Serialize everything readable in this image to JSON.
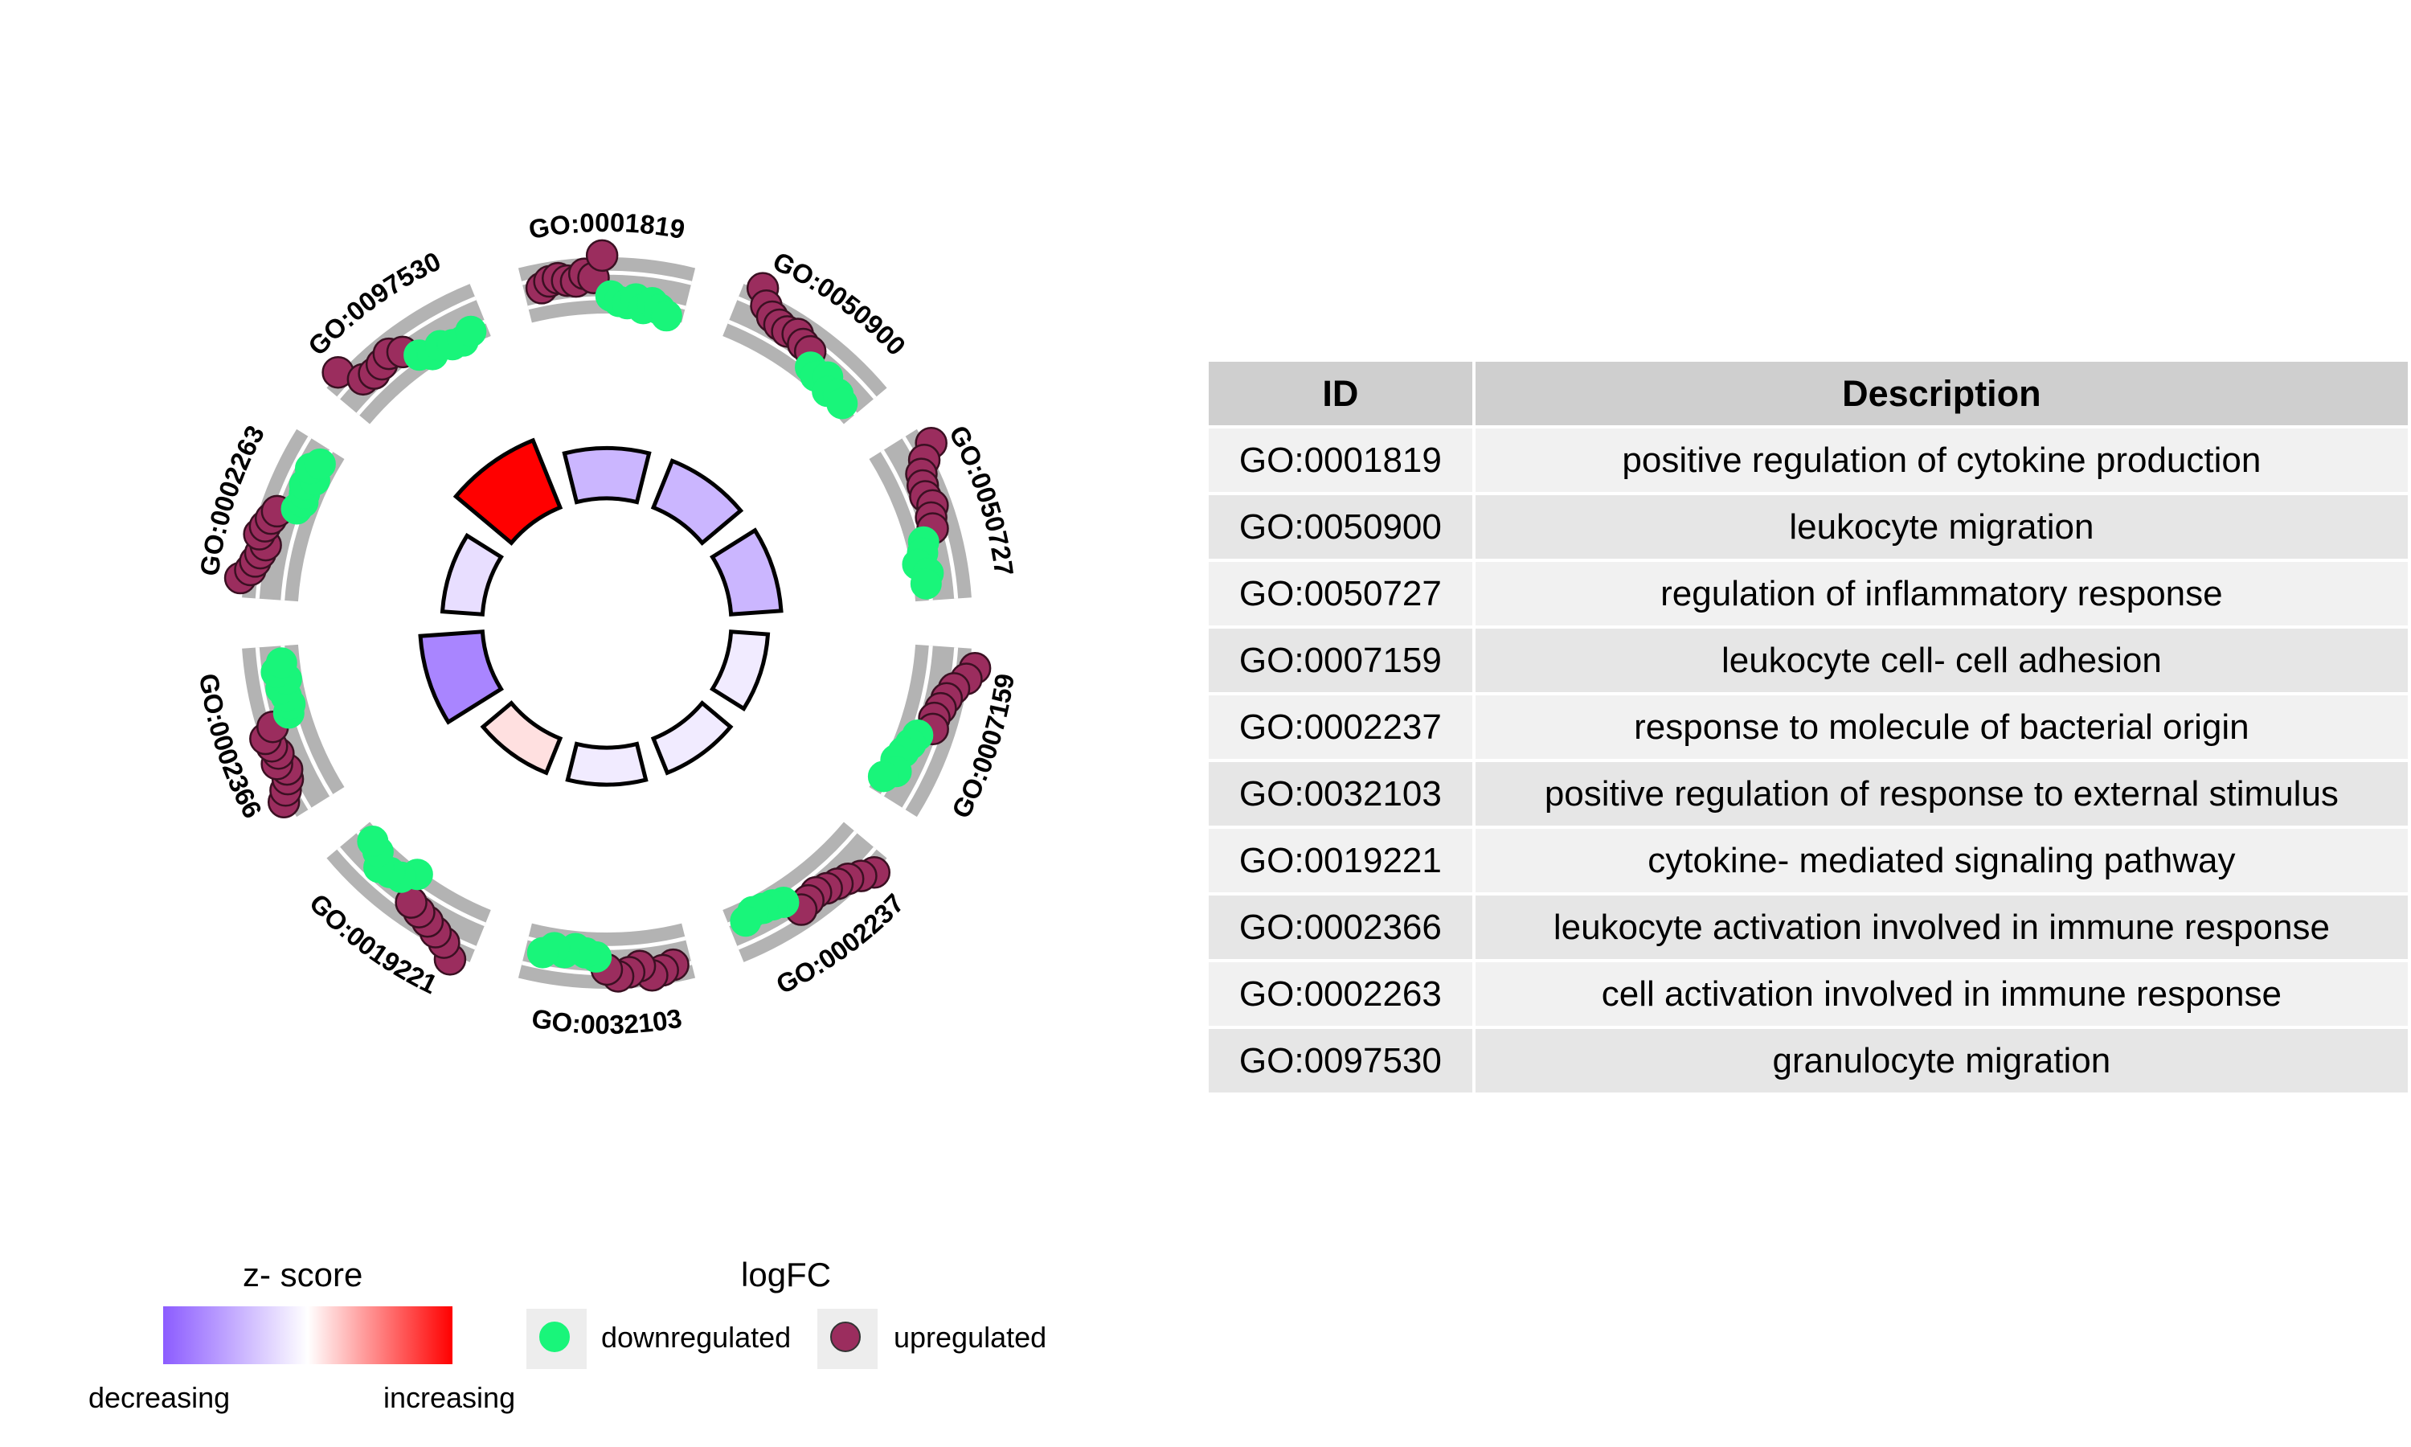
{
  "chart_data": {
    "type": "goplot-circle",
    "terms": [
      {
        "id": "GO:0001819",
        "description": "positive regulation of cytokine production",
        "zscore_level": -0.45,
        "points": [
          {
            "fc": 0.1,
            "reg": "up"
          },
          {
            "fc": 0.25,
            "reg": "up"
          },
          {
            "fc": 0.3,
            "reg": "up"
          },
          {
            "fc": 0.2,
            "reg": "up"
          },
          {
            "fc": 0.15,
            "reg": "up"
          },
          {
            "fc": 0.35,
            "reg": "up"
          },
          {
            "fc": 0.22,
            "reg": "up"
          },
          {
            "fc": 0.85,
            "reg": "up"
          },
          {
            "fc": -0.3,
            "reg": "down"
          },
          {
            "fc": -0.45,
            "reg": "down"
          },
          {
            "fc": -0.5,
            "reg": "down"
          },
          {
            "fc": -0.35,
            "reg": "down"
          },
          {
            "fc": -0.6,
            "reg": "down"
          },
          {
            "fc": -0.4,
            "reg": "down"
          },
          {
            "fc": -0.55,
            "reg": "down"
          },
          {
            "fc": -0.7,
            "reg": "down"
          }
        ]
      },
      {
        "id": "GO:0050900",
        "description": "leukocyte migration",
        "zscore_level": -0.45,
        "points": [
          {
            "fc": 0.9,
            "reg": "up"
          },
          {
            "fc": 0.5,
            "reg": "up"
          },
          {
            "fc": 0.3,
            "reg": "up"
          },
          {
            "fc": 0.2,
            "reg": "up"
          },
          {
            "fc": 0.15,
            "reg": "up"
          },
          {
            "fc": 0.25,
            "reg": "up"
          },
          {
            "fc": 0.1,
            "reg": "up"
          },
          {
            "fc": 0.05,
            "reg": "up"
          },
          {
            "fc": -0.3,
            "reg": "down"
          },
          {
            "fc": -0.4,
            "reg": "down"
          },
          {
            "fc": -0.2,
            "reg": "down"
          },
          {
            "fc": -0.5,
            "reg": "down"
          },
          {
            "fc": -0.35,
            "reg": "down"
          },
          {
            "fc": -0.45,
            "reg": "down"
          }
        ]
      },
      {
        "id": "GO:0050727",
        "description": "regulation of inflammatory response",
        "zscore_level": -0.45,
        "points": [
          {
            "fc": 0.95,
            "reg": "up"
          },
          {
            "fc": 0.55,
            "reg": "up"
          },
          {
            "fc": 0.3,
            "reg": "up"
          },
          {
            "fc": 0.2,
            "reg": "up"
          },
          {
            "fc": 0.15,
            "reg": "up"
          },
          {
            "fc": 0.25,
            "reg": "up"
          },
          {
            "fc": 0.1,
            "reg": "up"
          },
          {
            "fc": 0.05,
            "reg": "up"
          },
          {
            "fc": -0.3,
            "reg": "down"
          },
          {
            "fc": -0.4,
            "reg": "down"
          },
          {
            "fc": -0.6,
            "reg": "down"
          },
          {
            "fc": -0.35,
            "reg": "down"
          },
          {
            "fc": -0.45,
            "reg": "down"
          }
        ]
      },
      {
        "id": "GO:0007159",
        "description": "leukocyte cell- cell adhesion",
        "zscore_level": -0.12,
        "points": [
          {
            "fc": 0.95,
            "reg": "up"
          },
          {
            "fc": 0.75,
            "reg": "up"
          },
          {
            "fc": 0.45,
            "reg": "up"
          },
          {
            "fc": 0.3,
            "reg": "up"
          },
          {
            "fc": 0.2,
            "reg": "up"
          },
          {
            "fc": 0.1,
            "reg": "up"
          },
          {
            "fc": 0.15,
            "reg": "up"
          },
          {
            "fc": -0.2,
            "reg": "down"
          },
          {
            "fc": -0.3,
            "reg": "down"
          },
          {
            "fc": -0.4,
            "reg": "down"
          },
          {
            "fc": -0.5,
            "reg": "down"
          },
          {
            "fc": -0.35,
            "reg": "down"
          },
          {
            "fc": -0.6,
            "reg": "down"
          }
        ]
      },
      {
        "id": "GO:0002237",
        "description": "response to molecule of bacterial origin",
        "zscore_level": -0.12,
        "points": [
          {
            "fc": 0.8,
            "reg": "up"
          },
          {
            "fc": 0.6,
            "reg": "up"
          },
          {
            "fc": 0.4,
            "reg": "up"
          },
          {
            "fc": 0.3,
            "reg": "up"
          },
          {
            "fc": 0.2,
            "reg": "up"
          },
          {
            "fc": 0.1,
            "reg": "up"
          },
          {
            "fc": 0.15,
            "reg": "up"
          },
          {
            "fc": 0.25,
            "reg": "up"
          },
          {
            "fc": -0.2,
            "reg": "down"
          },
          {
            "fc": -0.3,
            "reg": "down"
          },
          {
            "fc": -0.35,
            "reg": "down"
          },
          {
            "fc": -0.4,
            "reg": "down"
          },
          {
            "fc": -0.25,
            "reg": "down"
          }
        ]
      },
      {
        "id": "GO:0032103",
        "description": "positive regulation of response to external stimulus",
        "zscore_level": -0.12,
        "points": [
          {
            "fc": 0.3,
            "reg": "up"
          },
          {
            "fc": 0.4,
            "reg": "up"
          },
          {
            "fc": 0.5,
            "reg": "up"
          },
          {
            "fc": 0.2,
            "reg": "up"
          },
          {
            "fc": 0.35,
            "reg": "up"
          },
          {
            "fc": 0.45,
            "reg": "up"
          },
          {
            "fc": 0.25,
            "reg": "up"
          },
          {
            "fc": -0.1,
            "reg": "down"
          },
          {
            "fc": -0.2,
            "reg": "down"
          },
          {
            "fc": -0.3,
            "reg": "down"
          },
          {
            "fc": -0.15,
            "reg": "down"
          },
          {
            "fc": -0.25,
            "reg": "down"
          },
          {
            "fc": -0.05,
            "reg": "down"
          }
        ]
      },
      {
        "id": "GO:0019221",
        "description": "cytokine- mediated signaling pathway",
        "zscore_level": 0.12,
        "points": [
          {
            "fc": 0.95,
            "reg": "up"
          },
          {
            "fc": 0.6,
            "reg": "up"
          },
          {
            "fc": 0.45,
            "reg": "up"
          },
          {
            "fc": 0.3,
            "reg": "up"
          },
          {
            "fc": 0.2,
            "reg": "up"
          },
          {
            "fc": 0.1,
            "reg": "up"
          },
          {
            "fc": -0.65,
            "reg": "down"
          },
          {
            "fc": -0.3,
            "reg": "down"
          },
          {
            "fc": -0.2,
            "reg": "down"
          },
          {
            "fc": -0.1,
            "reg": "down"
          },
          {
            "fc": -0.4,
            "reg": "down"
          },
          {
            "fc": -0.5,
            "reg": "down"
          }
        ]
      },
      {
        "id": "GO:0002366",
        "description": "leukocyte activation involved in immune response",
        "zscore_level": -0.75,
        "points": [
          {
            "fc": 0.9,
            "reg": "up"
          },
          {
            "fc": 0.7,
            "reg": "up"
          },
          {
            "fc": 0.5,
            "reg": "up"
          },
          {
            "fc": 0.4,
            "reg": "up"
          },
          {
            "fc": 0.6,
            "reg": "up"
          },
          {
            "fc": 0.45,
            "reg": "up"
          },
          {
            "fc": 0.55,
            "reg": "up"
          },
          {
            "fc": 0.65,
            "reg": "up"
          },
          {
            "fc": 0.35,
            "reg": "up"
          },
          {
            "fc": -0.2,
            "reg": "down"
          },
          {
            "fc": -0.3,
            "reg": "down"
          },
          {
            "fc": -0.25,
            "reg": "down"
          },
          {
            "fc": -0.15,
            "reg": "down"
          },
          {
            "fc": -0.35,
            "reg": "down"
          },
          {
            "fc": -0.1,
            "reg": "down"
          },
          {
            "fc": -0.28,
            "reg": "down"
          }
        ]
      },
      {
        "id": "GO:0002263",
        "description": "cell activation involved in immune response",
        "zscore_level": -0.2,
        "points": [
          {
            "fc": 0.9,
            "reg": "up"
          },
          {
            "fc": 0.65,
            "reg": "up"
          },
          {
            "fc": 0.55,
            "reg": "up"
          },
          {
            "fc": 0.45,
            "reg": "up"
          },
          {
            "fc": 0.35,
            "reg": "up"
          },
          {
            "fc": 0.6,
            "reg": "up"
          },
          {
            "fc": 0.5,
            "reg": "up"
          },
          {
            "fc": 0.4,
            "reg": "up"
          },
          {
            "fc": 0.3,
            "reg": "up"
          },
          {
            "fc": -0.2,
            "reg": "down"
          },
          {
            "fc": -0.3,
            "reg": "down"
          },
          {
            "fc": -0.25,
            "reg": "down"
          },
          {
            "fc": -0.15,
            "reg": "down"
          },
          {
            "fc": -0.35,
            "reg": "down"
          },
          {
            "fc": -0.1,
            "reg": "down"
          },
          {
            "fc": -0.28,
            "reg": "down"
          }
        ]
      },
      {
        "id": "GO:0097530",
        "description": "granulocyte migration",
        "zscore_level": 1.0,
        "points": [
          {
            "fc": 0.85,
            "reg": "up"
          },
          {
            "fc": 0.2,
            "reg": "up"
          },
          {
            "fc": 0.1,
            "reg": "up"
          },
          {
            "fc": 0.15,
            "reg": "up"
          },
          {
            "fc": 0.25,
            "reg": "up"
          },
          {
            "fc": 0.05,
            "reg": "up"
          },
          {
            "fc": -0.3,
            "reg": "down"
          },
          {
            "fc": -0.5,
            "reg": "down"
          },
          {
            "fc": -0.4,
            "reg": "down"
          },
          {
            "fc": -0.55,
            "reg": "down"
          },
          {
            "fc": -0.6,
            "reg": "down"
          },
          {
            "fc": -0.45,
            "reg": "down"
          }
        ]
      }
    ],
    "colors": {
      "up": "#9b2d5e",
      "down": "#19f57a",
      "z_low": "#8c5cff",
      "z_mid": "#ffffff",
      "z_high": "#ff0000",
      "track": "#b3b3b3"
    }
  },
  "table": {
    "headers": {
      "id": "ID",
      "description": "Description"
    }
  },
  "legend": {
    "zscore": {
      "title": "z- score",
      "low_label": "decreasing",
      "high_label": "increasing"
    },
    "logfc": {
      "title": "logFC",
      "down_label": "downregulated",
      "up_label": "upregulated"
    }
  }
}
